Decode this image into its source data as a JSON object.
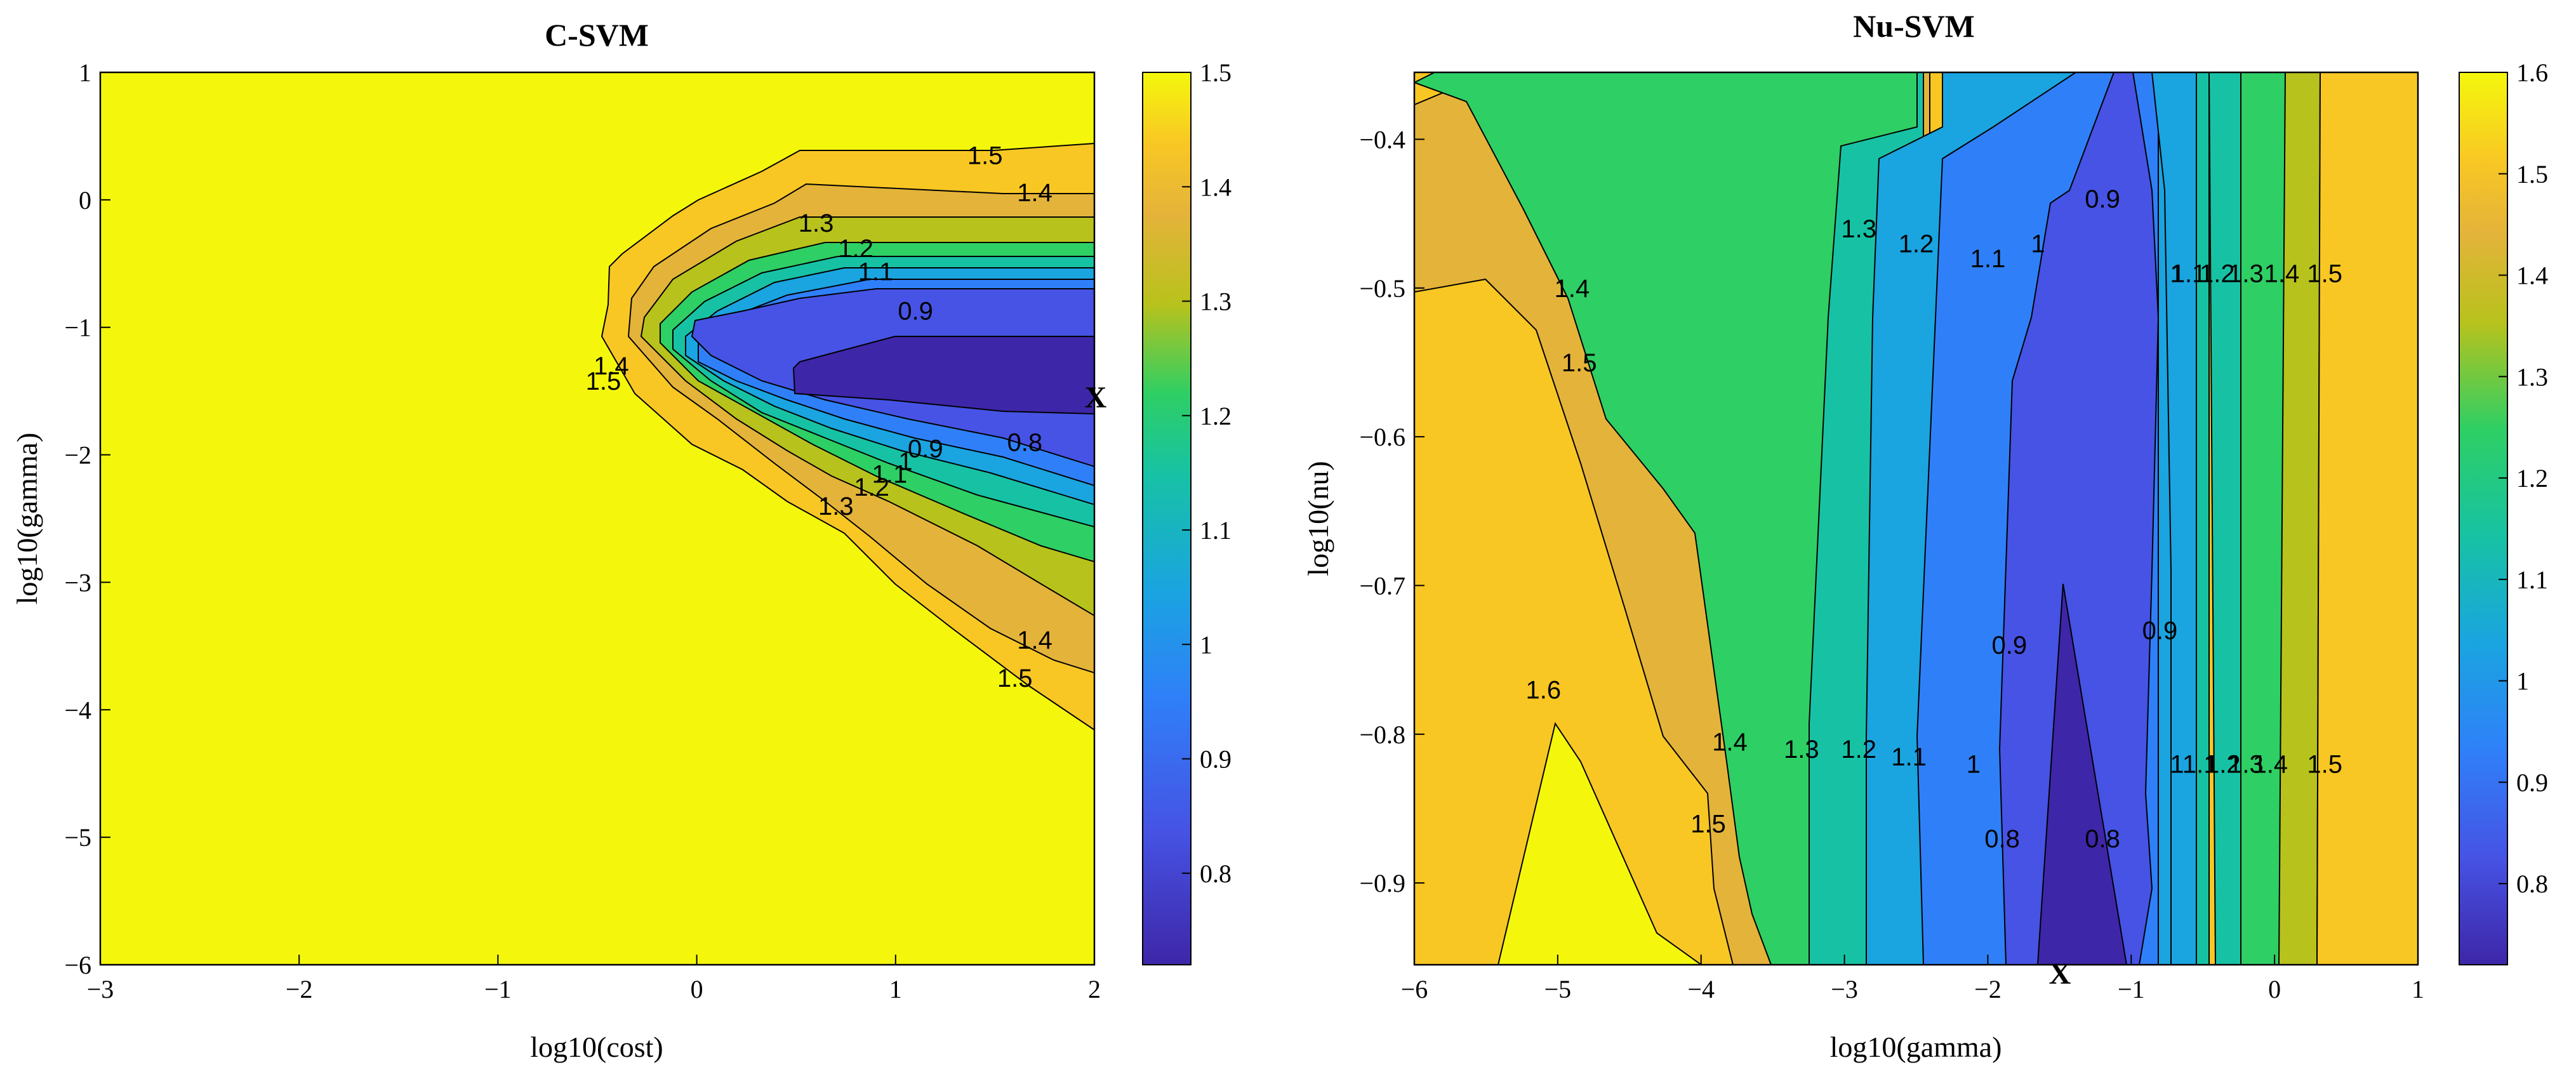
{
  "colormap": [
    "#3e26a8",
    "#4653e4",
    "#2f80f8",
    "#1aa4e0",
    "#17c2a4",
    "#2ecf64",
    "#b8c21c",
    "#e4b33a",
    "#f8c724",
    "#f4f70c"
  ],
  "chart_data": [
    {
      "type": "contour",
      "title": "C-SVM",
      "xlabel": "log10(cost)",
      "ylabel": "log10(gamma)",
      "xlim": [
        -3,
        2
      ],
      "ylim": [
        -6,
        1
      ],
      "xticks": [
        "−3",
        "−2",
        "−1",
        "0",
        "1",
        "2"
      ],
      "yticks": [
        "−6",
        "−5",
        "−4",
        "−3",
        "−2",
        "−1",
        "0",
        "1"
      ],
      "colorbar": {
        "range": [
          0.72,
          1.5
        ],
        "ticks": [
          "0.8",
          "0.9",
          "1",
          "1.1",
          "1.2",
          "1.3",
          "1.4",
          "1.5"
        ]
      },
      "levels": [
        0.8,
        0.9,
        1.0,
        1.1,
        1.2,
        1.3,
        1.4,
        1.5
      ],
      "contour_labels": [
        {
          "text": "1.5",
          "x": 1.45,
          "y": 0.35
        },
        {
          "text": "1.4",
          "x": 1.7,
          "y": 0.06
        },
        {
          "text": "1.3",
          "x": 0.6,
          "y": -0.18
        },
        {
          "text": "1.2",
          "x": 0.8,
          "y": -0.38
        },
        {
          "text": "1.1",
          "x": 0.9,
          "y": -0.56
        },
        {
          "text": "0.9",
          "x": 1.1,
          "y": -0.87
        },
        {
          "text": "0.8",
          "x": 1.65,
          "y": -1.9
        },
        {
          "text": "0.9",
          "x": 1.15,
          "y": -1.95
        },
        {
          "text": "1",
          "x": 1.05,
          "y": -2.05
        },
        {
          "text": "1.1",
          "x": 0.97,
          "y": -2.15
        },
        {
          "text": "1.2",
          "x": 0.88,
          "y": -2.25
        },
        {
          "text": "1.3",
          "x": 0.7,
          "y": -2.4
        },
        {
          "text": "1.4",
          "x": -0.43,
          "y": -1.3
        },
        {
          "text": "1.5",
          "x": -0.47,
          "y": -1.42
        },
        {
          "text": "1.4",
          "x": 1.7,
          "y": -3.45
        },
        {
          "text": "1.5",
          "x": 1.6,
          "y": -3.75
        }
      ],
      "minimum_marker": {
        "text": "X",
        "x": 2.0,
        "y": -1.55
      }
    },
    {
      "type": "contour",
      "title": "Nu-SVM",
      "xlabel": "log10(gamma)",
      "ylabel": "log10(nu)",
      "xlim": [
        -6,
        1
      ],
      "ylim": [
        -0.955,
        -0.355
      ],
      "xticks": [
        "−6",
        "−5",
        "−4",
        "−3",
        "−2",
        "−1",
        "0",
        "1"
      ],
      "yticks": [
        "−0.9",
        "−0.8",
        "−0.7",
        "−0.6",
        "−0.5",
        "−0.4"
      ],
      "colorbar": {
        "range": [
          0.72,
          1.6
        ],
        "ticks": [
          "0.8",
          "0.9",
          "1",
          "1.1",
          "1.2",
          "1.3",
          "1.4",
          "1.5",
          "1.6"
        ]
      },
      "levels": [
        0.8,
        0.9,
        1.0,
        1.1,
        1.2,
        1.3,
        1.4,
        1.5,
        1.6
      ],
      "contour_labels": [
        {
          "text": "1.4",
          "x": -4.9,
          "y": -0.5
        },
        {
          "text": "1.5",
          "x": -4.85,
          "y": -0.55
        },
        {
          "text": "1.3",
          "x": -2.9,
          "y": -0.46
        },
        {
          "text": "1.2",
          "x": -2.5,
          "y": -0.47
        },
        {
          "text": "1.1",
          "x": -2.0,
          "y": -0.48
        },
        {
          "text": "1",
          "x": -1.65,
          "y": -0.47
        },
        {
          "text": "0.9",
          "x": -1.2,
          "y": -0.44
        },
        {
          "text": "1",
          "x": -0.68,
          "y": -0.49
        },
        {
          "text": "1.1",
          "x": -0.6,
          "y": -0.49
        },
        {
          "text": "1.2",
          "x": -0.4,
          "y": -0.49
        },
        {
          "text": "1.3",
          "x": -0.2,
          "y": -0.49
        },
        {
          "text": "1.4",
          "x": 0.05,
          "y": -0.49
        },
        {
          "text": "1.5",
          "x": 0.35,
          "y": -0.49
        },
        {
          "text": "1.6",
          "x": -5.1,
          "y": -0.77
        },
        {
          "text": "1.4",
          "x": -3.8,
          "y": -0.805
        },
        {
          "text": "1.5",
          "x": -3.95,
          "y": -0.86
        },
        {
          "text": "1.3",
          "x": -3.3,
          "y": -0.81
        },
        {
          "text": "1.2",
          "x": -2.9,
          "y": -0.81
        },
        {
          "text": "1.1",
          "x": -2.55,
          "y": -0.815
        },
        {
          "text": "1",
          "x": -2.1,
          "y": -0.82
        },
        {
          "text": "0.9",
          "x": -1.85,
          "y": -0.74
        },
        {
          "text": "0.9",
          "x": -0.8,
          "y": -0.73
        },
        {
          "text": "0.8",
          "x": -1.9,
          "y": -0.87
        },
        {
          "text": "0.8",
          "x": -1.2,
          "y": -0.87
        },
        {
          "text": "1",
          "x": -0.68,
          "y": -0.82
        },
        {
          "text": "1.1",
          "x": -0.52,
          "y": -0.82
        },
        {
          "text": "1.2",
          "x": -0.36,
          "y": -0.82
        },
        {
          "text": "1.3",
          "x": -0.2,
          "y": -0.82
        },
        {
          "text": "1.4",
          "x": -0.03,
          "y": -0.82
        },
        {
          "text": "1.5",
          "x": 0.35,
          "y": -0.82
        }
      ],
      "minimum_marker": {
        "text": "X",
        "x": -1.5,
        "y": -0.955
      }
    }
  ]
}
